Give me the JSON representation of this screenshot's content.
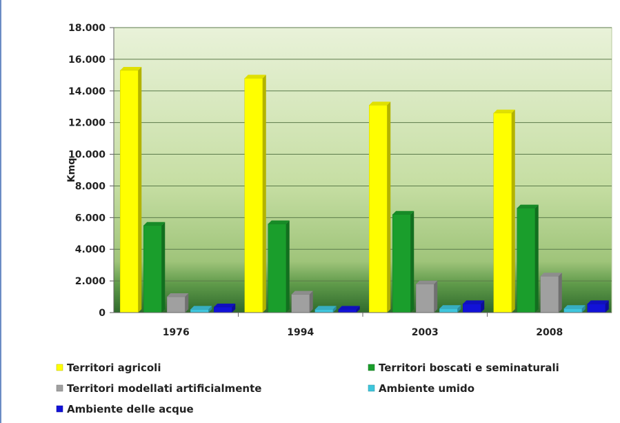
{
  "chart_data": {
    "type": "bar",
    "ylabel": "Kmq",
    "ylim": [
      0,
      18000
    ],
    "y_ticks": [
      "0",
      "2.000",
      "4.000",
      "6.000",
      "8.000",
      "10.000",
      "12.000",
      "14.000",
      "16.000",
      "18.000"
    ],
    "categories": [
      "1976",
      "1994",
      "2003",
      "2008"
    ],
    "series": [
      {
        "name": "Territori agricoli",
        "color": "#ffff00",
        "values": [
          15300,
          14800,
          13100,
          12600
        ]
      },
      {
        "name": "Territori boscati e seminaturali",
        "color": "#1a9e2c",
        "values": [
          5500,
          5600,
          6200,
          6600
        ]
      },
      {
        "name": "Territori modellati artificialmente",
        "color": "#a0a0a0",
        "values": [
          1000,
          1150,
          1800,
          2300
        ]
      },
      {
        "name": "Ambiente umido",
        "color": "#3ec6dc",
        "values": [
          200,
          200,
          250,
          250
        ]
      },
      {
        "name": "Ambiente delle acque",
        "color": "#1212d8",
        "values": [
          350,
          200,
          550,
          550
        ]
      }
    ],
    "grid": true,
    "legend_position": "bottom"
  }
}
